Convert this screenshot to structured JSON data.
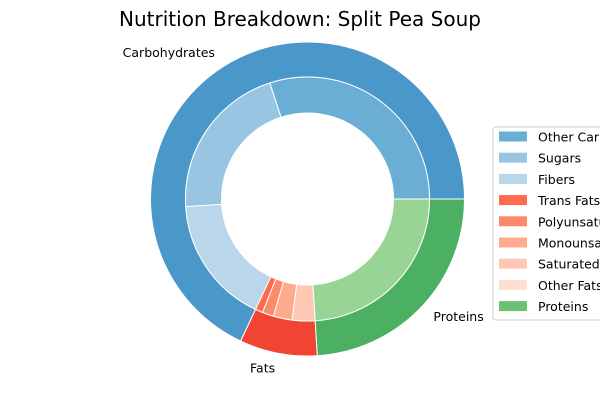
{
  "chart_data": {
    "type": "pie",
    "title": "Nutrition Breakdown:  Split Pea Soup",
    "legend_position": "right",
    "outer_ring": [
      {
        "label": "Carbohydrates",
        "value": 68,
        "color": "#4a98c9"
      },
      {
        "label": "Fats",
        "value": 8,
        "color": "#f14432"
      },
      {
        "label": "Proteins",
        "value": 24,
        "color": "#4bb062"
      }
    ],
    "inner_ring": [
      {
        "name": "Other Carbohydrates",
        "value": 30,
        "color": "#6aaed6"
      },
      {
        "name": "Sugars",
        "value": 21,
        "color": "#98c5e1"
      },
      {
        "name": "Fibers",
        "value": 17,
        "color": "#bad6eb"
      },
      {
        "name": "Trans Fats",
        "value": 1,
        "color": "#fc6b4c"
      },
      {
        "name": "Polyunsaturated Fats",
        "value": 1.5,
        "color": "#fc8a6a"
      },
      {
        "name": "Monounsaturated Fats",
        "value": 2.5,
        "color": "#fcab8f"
      },
      {
        "name": "Saturated Fats",
        "value": 3,
        "color": "#fdc9b4"
      },
      {
        "name": "Other Fats",
        "value": 0,
        "color": "#fee0d3"
      },
      {
        "name": "Proteins",
        "value": 24,
        "color": "#98d594"
      }
    ],
    "legend": [
      {
        "label": "Other Carbohydrates",
        "color": "#6aaed6"
      },
      {
        "label": "Sugars",
        "color": "#98c5e1"
      },
      {
        "label": "Fibers",
        "color": "#bad6eb"
      },
      {
        "label": "Trans Fats",
        "color": "#fc6b4c"
      },
      {
        "label": "Polyunsaturated Fats",
        "color": "#fc8a6a"
      },
      {
        "label": "Monounsaturated Fats",
        "color": "#fcab8f"
      },
      {
        "label": "Saturated Fats",
        "color": "#fdc9b4"
      },
      {
        "label": "Other Fats",
        "color": "#fee0d3"
      },
      {
        "label": "Proteins",
        "color": "#6cc072"
      }
    ]
  }
}
